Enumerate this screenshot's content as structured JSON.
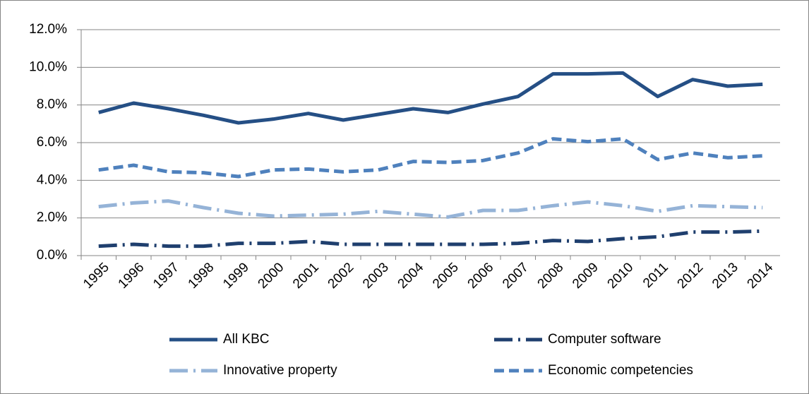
{
  "chart_data": {
    "type": "line",
    "categories": [
      "1995",
      "1996",
      "1997",
      "1998",
      "1999",
      "2000",
      "2001",
      "2002",
      "2003",
      "2004",
      "2005",
      "2006",
      "2007",
      "2008",
      "2009",
      "2010",
      "2011",
      "2012",
      "2013",
      "2014"
    ],
    "series": [
      {
        "name": "All KBC",
        "color": "#254f85",
        "dash": "solid",
        "values": [
          7.6,
          8.1,
          7.8,
          7.45,
          7.05,
          7.25,
          7.55,
          7.2,
          7.5,
          7.8,
          7.6,
          8.05,
          8.45,
          9.65,
          9.65,
          9.7,
          8.45,
          9.35,
          9.0,
          9.1
        ]
      },
      {
        "name": "Computer software",
        "color": "#1f3f6e",
        "dash": "longdashdot",
        "values": [
          0.5,
          0.6,
          0.5,
          0.5,
          0.65,
          0.65,
          0.75,
          0.6,
          0.6,
          0.6,
          0.6,
          0.6,
          0.65,
          0.8,
          0.75,
          0.9,
          1.0,
          1.25,
          1.25,
          1.3
        ]
      },
      {
        "name": "Innovative property",
        "color": "#95b3d7",
        "dash": "longdashdot",
        "values": [
          2.6,
          2.8,
          2.9,
          2.55,
          2.25,
          2.1,
          2.15,
          2.2,
          2.35,
          2.2,
          2.05,
          2.4,
          2.4,
          2.65,
          2.85,
          2.65,
          2.35,
          2.65,
          2.6,
          2.55
        ]
      },
      {
        "name": "Economic competencies",
        "color": "#4f81bd",
        "dash": "dash",
        "values": [
          4.55,
          4.8,
          4.45,
          4.4,
          4.2,
          4.55,
          4.6,
          4.45,
          4.55,
          5.0,
          4.95,
          5.05,
          5.45,
          6.2,
          6.05,
          6.2,
          5.1,
          5.45,
          5.2,
          5.3
        ]
      }
    ],
    "ylim": [
      0,
      12
    ],
    "yticks": [
      {
        "value": 0,
        "label": "0.0%"
      },
      {
        "value": 2,
        "label": "2.0%"
      },
      {
        "value": 4,
        "label": "4.0%"
      },
      {
        "value": 6,
        "label": "6.0%"
      },
      {
        "value": 8,
        "label": "8.0%"
      },
      {
        "value": 10,
        "label": "10.0%"
      },
      {
        "value": 12,
        "label": "12.0%"
      }
    ],
    "grid": true,
    "legend": "bottom"
  }
}
